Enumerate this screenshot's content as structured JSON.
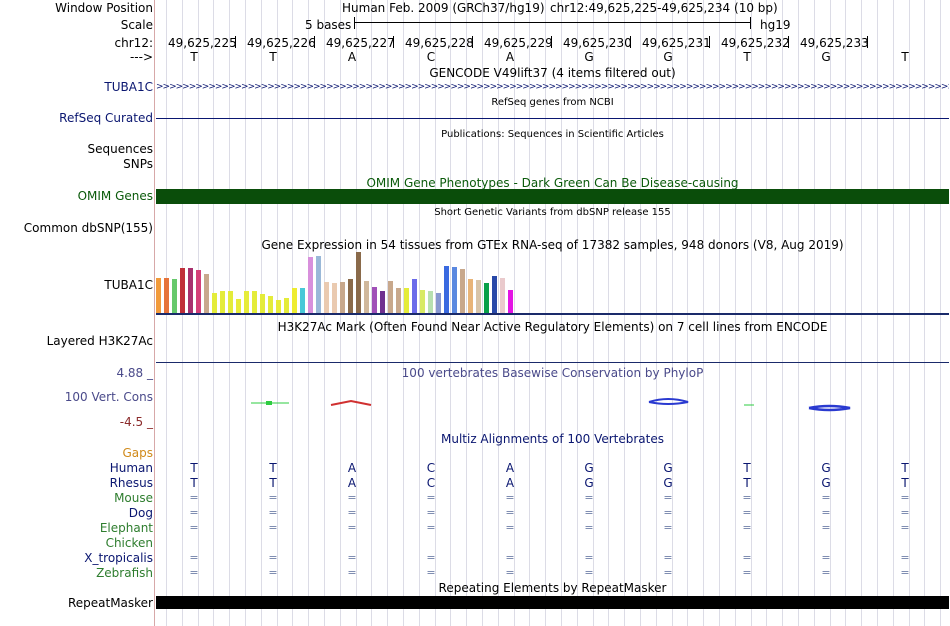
{
  "header": {
    "assembly": "Human Feb. 2009 (GRCh37/hg19)",
    "position": "chr12:49,625,225-49,625,234 (10 bp)",
    "scale_text": "5 bases",
    "scale_assembly": "hg19"
  },
  "labels": {
    "window_position": "Window Position",
    "scale": "Scale",
    "chr": "chr12:",
    "strand": "--->",
    "tuba1c": "TUBA1C",
    "refseq": "RefSeq Curated",
    "sequences": "Sequences",
    "snps": "SNPs",
    "omim": "OMIM Genes",
    "dbsnp": "Common dbSNP(155)",
    "gtex": "TUBA1C",
    "h3k27ac": "Layered H3K27Ac",
    "cons_max": "4.88 _",
    "cons": "100 Vert. Cons",
    "cons_min": "-4.5 _",
    "gaps": "Gaps",
    "repeatmasker": "RepeatMasker"
  },
  "coords": [
    "49,625,225",
    "49,625,226",
    "49,625,227",
    "49,625,228",
    "49,625,229",
    "49,625,230",
    "49,625,231",
    "49,625,232",
    "49,625,233"
  ],
  "bases": [
    "T",
    "T",
    "A",
    "C",
    "A",
    "G",
    "G",
    "T",
    "G",
    "T"
  ],
  "tracks": {
    "gencode": "GENCODE V49lift37 (4 items filtered out)",
    "refseq": "RefSeq genes from NCBI",
    "publications": "Publications: Sequences in Scientific Articles",
    "omim": "OMIM Gene Phenotypes - Dark Green Can Be Disease-causing",
    "dbsnp": "Short Genetic Variants from dbSNP release 155",
    "gtex": "Gene Expression in 54 tissues from GTEx RNA-seq of 17382 samples, 948 donors (V8, Aug 2019)",
    "h3k27ac": "H3K27Ac Mark (Often Found Near Active Regulatory Elements) on 7 cell lines from ENCODE",
    "phylop": "100 vertebrates Basewise Conservation by PhyloP",
    "multiz": "Multiz Alignments of 100 Vertebrates",
    "repeat": "Repeating Elements by RepeatMasker"
  },
  "species": [
    {
      "name": "Human",
      "color": "#0a1670"
    },
    {
      "name": "Rhesus",
      "color": "#0a1670"
    },
    {
      "name": "Mouse",
      "color": "#2e7d2e"
    },
    {
      "name": "Dog",
      "color": "#0a1670"
    },
    {
      "name": "Elephant",
      "color": "#2e7d2e"
    },
    {
      "name": "Chicken",
      "color": "#2e7d2e"
    },
    {
      "name": "X_tropicalis",
      "color": "#0a1670"
    },
    {
      "name": "Zebrafish",
      "color": "#2e7d2e"
    }
  ],
  "alignment": {
    "human": [
      "T",
      "T",
      "A",
      "C",
      "A",
      "G",
      "G",
      "T",
      "G",
      "T"
    ],
    "rhesus": [
      "T",
      "T",
      "A",
      "C",
      "A",
      "G",
      "G",
      "T",
      "G",
      "T"
    ],
    "eq_symbol": "="
  },
  "gtex_bars": {
    "heights": [
      36,
      36,
      35,
      46,
      46,
      44,
      40,
      21,
      23,
      23,
      15,
      23,
      23,
      20,
      18,
      14,
      16,
      26,
      26,
      57,
      58,
      32,
      31,
      32,
      35,
      62,
      33,
      27,
      23,
      33,
      26,
      26,
      35,
      24,
      23,
      21,
      48,
      47,
      45,
      35,
      34,
      31,
      38,
      36,
      24
    ],
    "colors": [
      "#f29a3a",
      "#e6733a",
      "#66c96c",
      "#c0303a",
      "#a8306e",
      "#d43f78",
      "#c8a88c",
      "#e4ec3a",
      "#e4ec3a",
      "#e4ec3a",
      "#e8ec38",
      "#e6ec3a",
      "#e4ec3a",
      "#e4ec3a",
      "#e4ec3a",
      "#e8ec38",
      "#e4ec3a",
      "#eeec30",
      "#48c8d8",
      "#d890dc",
      "#9ab8d8",
      "#eacab0",
      "#eacab0",
      "#c8a88c",
      "#8a6a4a",
      "#8a6a4a",
      "#d0b89c",
      "#a050b8",
      "#703090",
      "#c8a88c",
      "#c8a88c",
      "#e4ec3a",
      "#6a6aea",
      "#d8ea64",
      "#b8e0b0",
      "#8898d0",
      "#3a6ae0",
      "#5a88e0",
      "#c8a88c",
      "#e8b478",
      "#d8c4a8",
      "#08a048",
      "#2848a8",
      "#eacacc",
      "#e414e4"
    ]
  },
  "colors": {
    "omim_bar": "#0a4d0a",
    "repeat_bar": "#000000",
    "refseq_line": "#0a1670",
    "gtex_baseline": "#1a2a6a",
    "phylop_text": "#4a4a8a",
    "conserved_green": "#2ecc40",
    "conserved_red": "#d03030",
    "conserved_blue": "#2a3ad0"
  }
}
